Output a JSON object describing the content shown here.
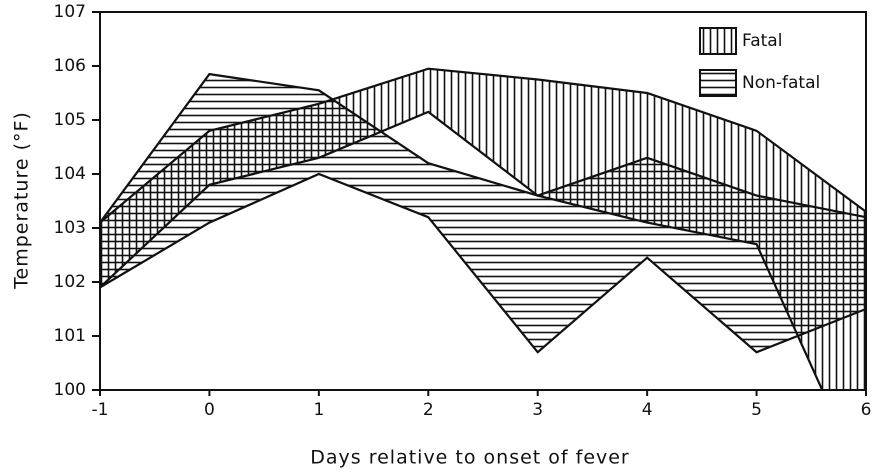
{
  "chart_data": {
    "type": "range_area",
    "x": [
      -1,
      0,
      1,
      2,
      3,
      4,
      5,
      6
    ],
    "series": [
      {
        "name": "Fatal",
        "pattern": "vertical",
        "color": "#111111",
        "upper": [
          103.1,
          104.8,
          105.3,
          105.95,
          105.75,
          105.5,
          104.8,
          103.3
        ],
        "lower": [
          101.9,
          103.8,
          104.3,
          105.15,
          103.6,
          103.1,
          102.7,
          98.2
        ]
      },
      {
        "name": "Non-fatal",
        "pattern": "horizontal",
        "color": "#111111",
        "upper": [
          103.1,
          105.85,
          105.55,
          104.2,
          103.6,
          104.3,
          103.6,
          103.2
        ],
        "lower": [
          101.9,
          103.1,
          104.0,
          103.2,
          100.7,
          102.45,
          100.7,
          101.5
        ]
      }
    ],
    "xlabel": "Days relative to onset of fever",
    "ylabel": "Temperature (°F)",
    "xlim": [
      -1,
      6
    ],
    "xticks": [
      -1,
      0,
      1,
      2,
      3,
      4,
      5,
      6
    ],
    "ylim": [
      100,
      107
    ],
    "yticks": [
      100,
      101,
      102,
      103,
      104,
      105,
      106,
      107
    ],
    "legend": "top-right"
  }
}
